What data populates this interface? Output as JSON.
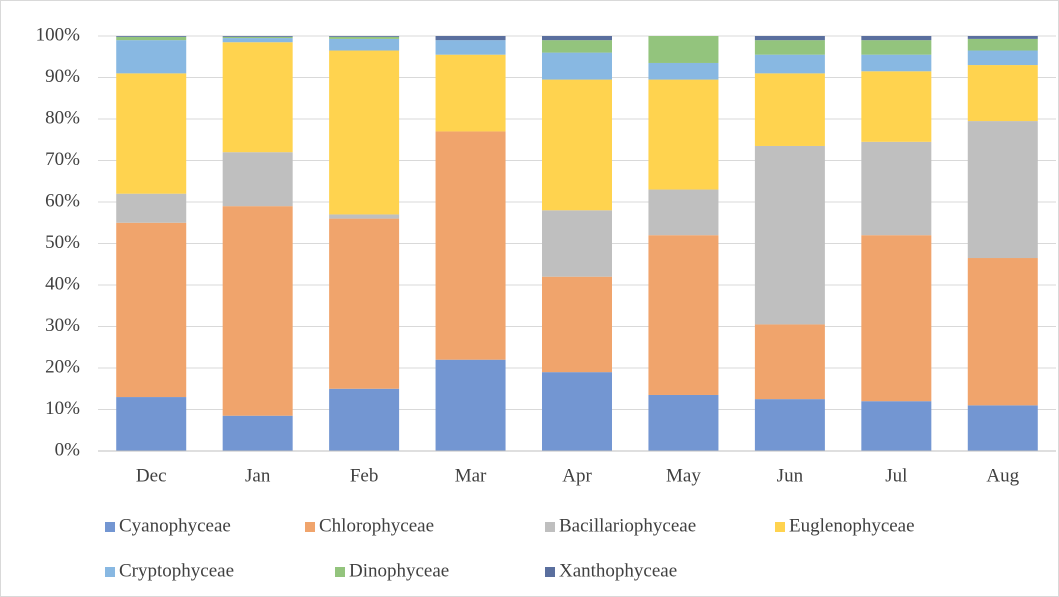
{
  "chart_data": {
    "type": "stacked_bar",
    "categories": [
      "Dec",
      "Jan",
      "Feb",
      "Mar",
      "Apr",
      "May",
      "Jun",
      "Jul",
      "Aug"
    ],
    "series": [
      {
        "name": "Cyanophyceae",
        "color": "#7396d2",
        "values": [
          13,
          8.5,
          15,
          22,
          19,
          13.5,
          12.5,
          12,
          11
        ]
      },
      {
        "name": "Chlorophyceae",
        "color": "#f0a46c",
        "values": [
          42,
          50.5,
          41,
          55,
          23,
          38.5,
          18,
          40,
          35.5
        ]
      },
      {
        "name": "Bacillariophyceae",
        "color": "#bfbfbf",
        "values": [
          7,
          13,
          1,
          0,
          16,
          11,
          43,
          22.5,
          33
        ]
      },
      {
        "name": "Euglenophyceae",
        "color": "#ffd34f",
        "values": [
          29,
          26.5,
          39.5,
          18.5,
          31.5,
          26.5,
          17.5,
          17,
          13.5
        ]
      },
      {
        "name": "Cryptophyceae",
        "color": "#88b8e2",
        "values": [
          8,
          1,
          2.8,
          3.5,
          6.5,
          4,
          4.5,
          4,
          3.5
        ]
      },
      {
        "name": "Dinophyceae",
        "color": "#93c47d",
        "values": [
          0.8,
          0.3,
          0.5,
          0,
          3,
          6.5,
          3.5,
          3.5,
          2.8
        ]
      },
      {
        "name": "Xanthophyceae",
        "color": "#5a6f9e",
        "values": [
          0.2,
          0.2,
          0.2,
          1,
          1,
          0,
          1,
          1,
          0.7
        ]
      }
    ],
    "ylim": [
      0,
      100
    ],
    "yticks": [
      {
        "value": 0,
        "label": "0%"
      },
      {
        "value": 10,
        "label": "10%"
      },
      {
        "value": 20,
        "label": "20%"
      },
      {
        "value": 30,
        "label": "30%"
      },
      {
        "value": 40,
        "label": "40%"
      },
      {
        "value": 50,
        "label": "50%"
      },
      {
        "value": 60,
        "label": "60%"
      },
      {
        "value": 70,
        "label": "70%"
      },
      {
        "value": 80,
        "label": "80%"
      },
      {
        "value": 90,
        "label": "90%"
      },
      {
        "value": 100,
        "label": "100%"
      }
    ],
    "grid": true,
    "legend": "bottom"
  }
}
